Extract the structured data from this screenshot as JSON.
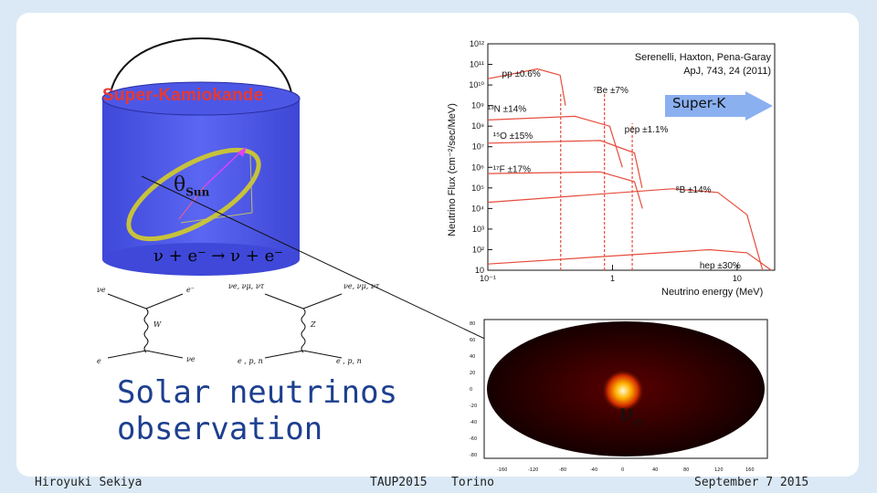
{
  "detector": {
    "label": "Super-Kamiokande",
    "theta_symbol": "θ",
    "theta_sub": "Sun",
    "reaction": "ν + e⁻ → ν + e⁻"
  },
  "feynman": {
    "left": {
      "top_left": "νe",
      "top_right": "e⁻",
      "mediator": "W",
      "bottom_left": "e",
      "bottom_right": "νe"
    },
    "right": {
      "top_left": "νe, νμ, ντ",
      "top_right": "νe, νμ, ντ",
      "mediator": "Z",
      "bottom_left": "e , p, n",
      "bottom_right": "e , p, n"
    }
  },
  "title": {
    "line1": "Solar neutrinos",
    "line2": "observation"
  },
  "footer": {
    "author": "Hiroyuki Sekiya",
    "conference": "TAUP2015",
    "place": "Torino",
    "date": "September 7 2015"
  },
  "spectrum_chart": {
    "citation_line1": "Serenelli, Haxton, Pena-Garay",
    "citation_line2": "ApJ, 743, 24 (2011)",
    "ylabel": "Neutrino Flux (cm⁻²/sec/MeV)",
    "xlabel": "Neutrino energy (MeV)",
    "superk_label": "Super-K",
    "accent": "#e64c3c"
  },
  "skymap": {
    "label": "ν",
    "label_sub": "e",
    "y_ticks": [
      "80",
      "60",
      "40",
      "20",
      "0",
      "-20",
      "-40",
      "-60",
      "-80"
    ],
    "x_ticks": [
      "-160",
      "-120",
      "-80",
      "-40",
      "0",
      "40",
      "80",
      "120",
      "160"
    ]
  },
  "chart_data": {
    "type": "line",
    "title": "",
    "xlabel": "Neutrino energy (MeV)",
    "ylabel": "Neutrino Flux (cm⁻²/sec/MeV)",
    "xscale": "log",
    "yscale": "log",
    "xlim": [
      0.1,
      20
    ],
    "ylim": [
      10,
      1000000000000.0
    ],
    "x_ticks": [
      "10⁻¹",
      "1",
      "10"
    ],
    "y_ticks": [
      "10",
      "10²",
      "10³",
      "10⁴",
      "10⁵",
      "10⁶",
      "10⁷",
      "10⁸",
      "10⁹",
      "10¹⁰",
      "10¹¹",
      "10¹²"
    ],
    "series": [
      {
        "name": "pp",
        "uncertainty": "±0.6%",
        "points": [
          [
            0.1,
            20000000000.0
          ],
          [
            0.25,
            60000000000.0
          ],
          [
            0.38,
            30000000000.0
          ],
          [
            0.42,
            1000000000.0
          ]
        ]
      },
      {
        "name": "¹³N",
        "uncertainty": "±14%",
        "points": [
          [
            0.1,
            200000000.0
          ],
          [
            0.5,
            300000000.0
          ],
          [
            0.95,
            100000000.0
          ],
          [
            1.2,
            1000000.0
          ]
        ]
      },
      {
        "name": "⁷Be",
        "uncertainty": "±7%",
        "lines_MeV": [
          0.384,
          0.862
        ],
        "flux": [
          4000000000.0,
          4000000000.0
        ]
      },
      {
        "name": "pep",
        "uncertainty": "±1.1%",
        "lines_MeV": [
          1.44
        ],
        "flux": [
          140000000.0
        ]
      },
      {
        "name": "¹⁵O",
        "uncertainty": "±15%",
        "points": [
          [
            0.1,
            15000000.0
          ],
          [
            0.8,
            20000000.0
          ],
          [
            1.5,
            5000000.0
          ],
          [
            1.73,
            100000.0
          ]
        ]
      },
      {
        "name": "¹⁷F",
        "uncertainty": "±17%",
        "points": [
          [
            0.1,
            500000.0
          ],
          [
            0.8,
            600000.0
          ],
          [
            1.5,
            200000.0
          ],
          [
            1.74,
            10000.0
          ]
        ]
      },
      {
        "name": "⁸B",
        "uncertainty": "±14%",
        "points": [
          [
            0.1,
            20000.0
          ],
          [
            3,
            90000.0
          ],
          [
            7,
            60000.0
          ],
          [
            12,
            5000.0
          ],
          [
            16,
            10
          ]
        ]
      },
      {
        "name": "hep",
        "uncertainty": "±30%",
        "points": [
          [
            0.1,
            20
          ],
          [
            6,
            100
          ],
          [
            12,
            70
          ],
          [
            18.8,
            10
          ]
        ]
      }
    ]
  }
}
